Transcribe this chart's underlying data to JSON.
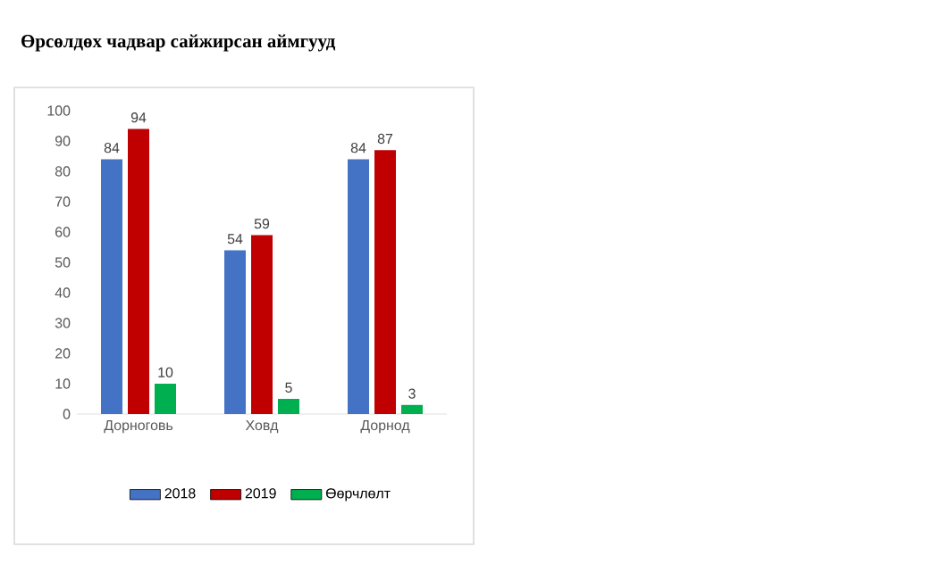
{
  "chart_data": {
    "type": "bar",
    "title": "Өрсөлдөх чадвар сайжирсан аймгууд",
    "categories": [
      "Дорноговь",
      "Ховд",
      "Дорнод"
    ],
    "series": [
      {
        "name": "2018",
        "color": "#4472c4",
        "values": [
          84,
          54,
          84
        ]
      },
      {
        "name": "2019",
        "color": "#c00000",
        "values": [
          94,
          59,
          87
        ]
      },
      {
        "name": "Өөрчлөлт",
        "color": "#00b050",
        "values": [
          10,
          5,
          3
        ]
      }
    ],
    "ylim": [
      0,
      100
    ],
    "yticks": [
      0,
      10,
      20,
      30,
      40,
      50,
      60,
      70,
      80,
      90,
      100
    ],
    "data_labels": true,
    "legend": "bottom",
    "grid": false
  }
}
